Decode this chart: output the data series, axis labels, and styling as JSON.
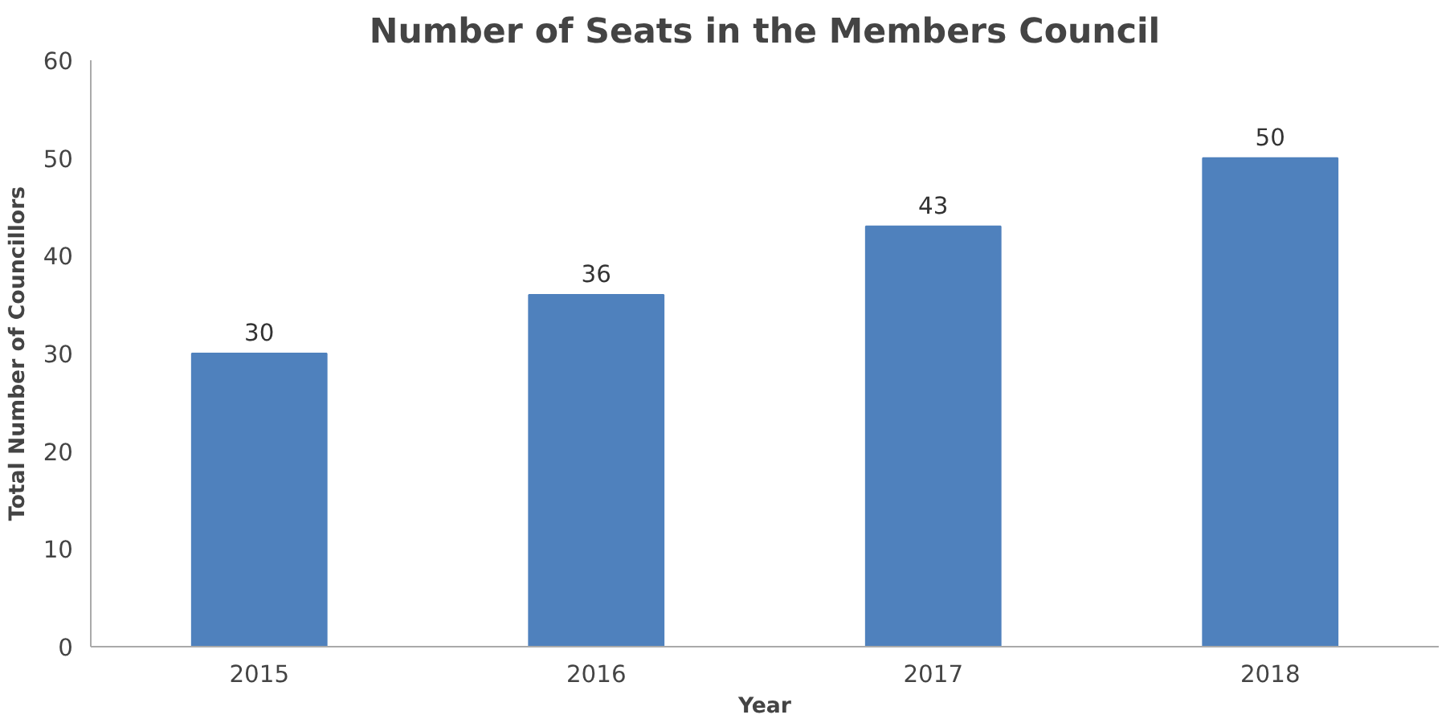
{
  "chart_data": {
    "type": "bar",
    "title": "Number of Seats in the Members Council",
    "xlabel": "Year",
    "ylabel": "Total Number of Councillors",
    "categories": [
      "2015",
      "2016",
      "2017",
      "2018"
    ],
    "values": [
      30,
      36,
      43,
      50
    ],
    "color": "#4f81bd",
    "ylim": [
      0,
      60
    ],
    "yticks": [
      0,
      10,
      20,
      30,
      40,
      50,
      60
    ],
    "grid": false,
    "data_labels": true
  }
}
